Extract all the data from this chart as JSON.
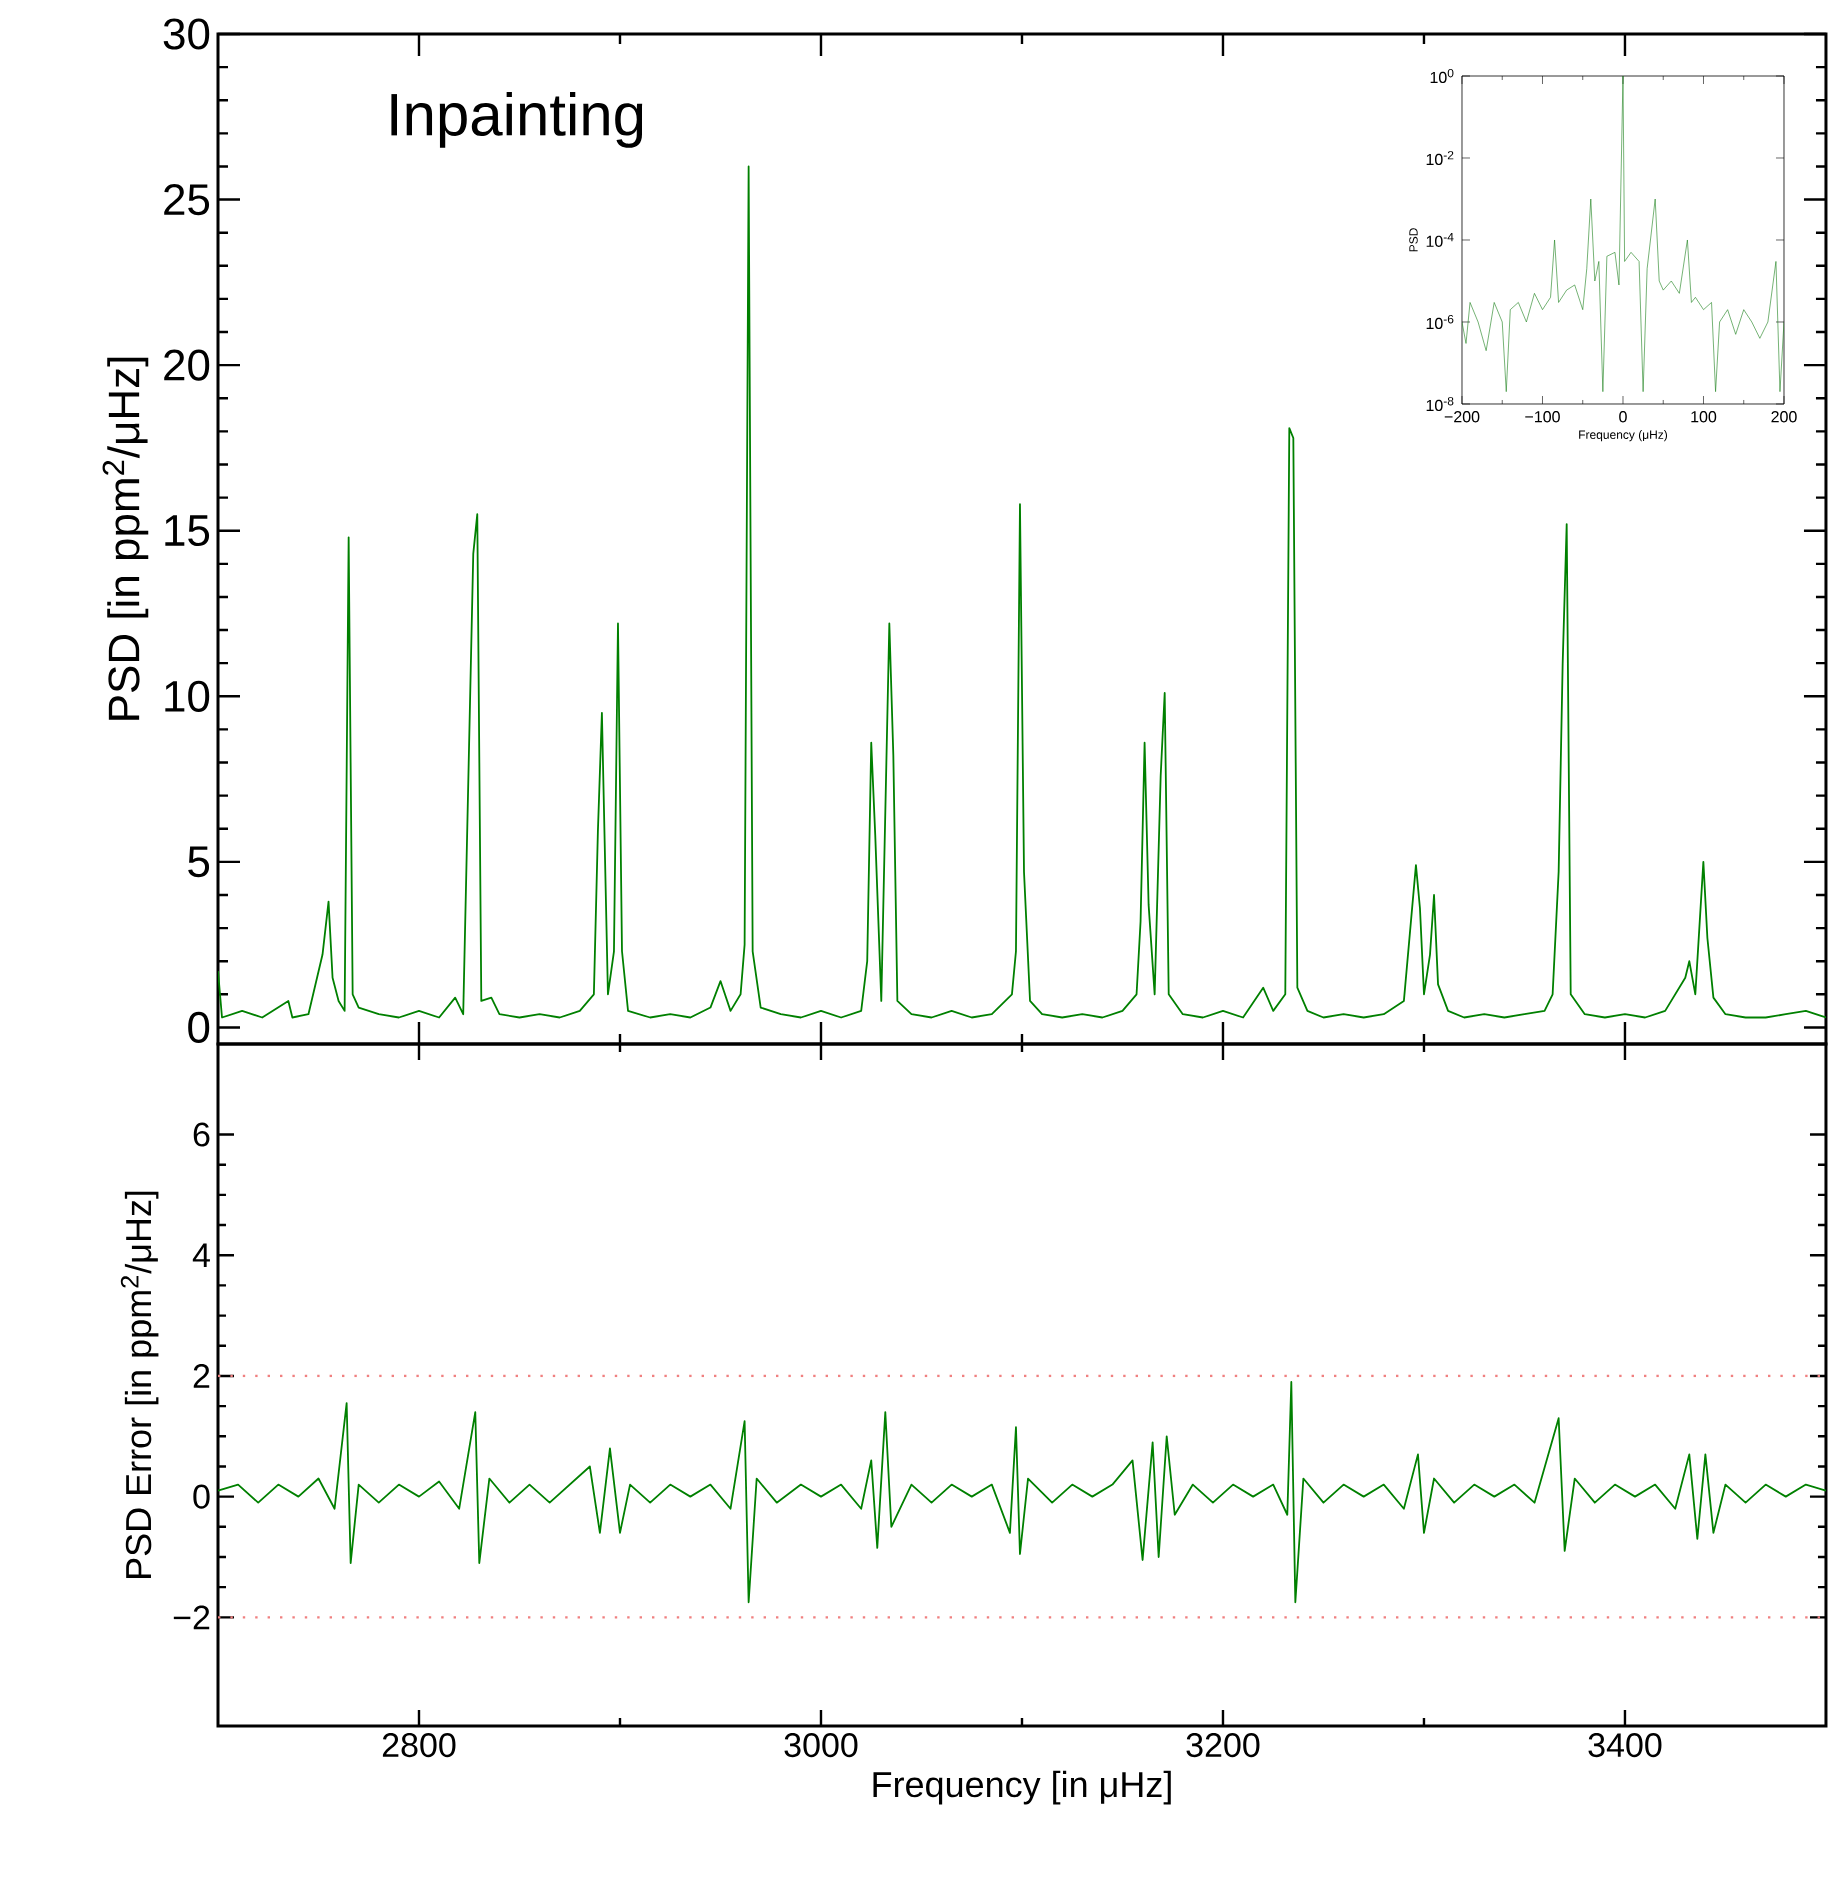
{
  "chart_data": [
    {
      "type": "line",
      "ylabel": "PSD [in ppm$^{2}$/μHz]",
      "annotations": [
        "Inpainting"
      ],
      "tick_labels": "y",
      "xlim": [
        2700,
        3500
      ],
      "ylim": [
        -0.5,
        30
      ],
      "xticks": [
        2800,
        3000,
        3200,
        3400
      ],
      "yticks": [
        0,
        5,
        10,
        15,
        20,
        25,
        30
      ],
      "series": [
        {
          "color": "#008000",
          "x": [
            2700,
            2702,
            2712,
            2722,
            2735,
            2737,
            2745,
            2752,
            2755,
            2757,
            2760,
            2763,
            2765,
            2767,
            2770,
            2780,
            2790,
            2800,
            2810,
            2818,
            2822,
            2827,
            2829,
            2831,
            2836,
            2840,
            2850,
            2860,
            2870,
            2880,
            2887,
            2889,
            2891,
            2894,
            2897,
            2899,
            2901,
            2904,
            2915,
            2925,
            2935,
            2945,
            2950,
            2955,
            2960,
            2962,
            2964,
            2966,
            2970,
            2980,
            2990,
            3000,
            3010,
            3020,
            3023,
            3025,
            3027,
            3030,
            3034,
            3036,
            3038,
            3045,
            3055,
            3065,
            3075,
            3085,
            3095,
            3097,
            3099,
            3101,
            3104,
            3110,
            3120,
            3130,
            3140,
            3150,
            3157,
            3159,
            3161,
            3163,
            3166,
            3169,
            3171,
            3173,
            3180,
            3190,
            3200,
            3210,
            3220,
            3225,
            3231,
            3233,
            3235,
            3237,
            3242,
            3250,
            3260,
            3270,
            3280,
            3290,
            3296,
            3298,
            3300,
            3303,
            3305,
            3307,
            3312,
            3320,
            3330,
            3340,
            3350,
            3360,
            3364,
            3367,
            3369,
            3371,
            3373,
            3380,
            3390,
            3400,
            3410,
            3420,
            3430,
            3432,
            3435,
            3439,
            3441,
            3444,
            3450,
            3460,
            3470,
            3480,
            3490,
            3500
          ],
          "values": [
            1.7,
            0.3,
            0.5,
            0.3,
            0.8,
            0.3,
            0.4,
            2.2,
            3.8,
            1.5,
            0.8,
            0.5,
            14.8,
            1.0,
            0.6,
            0.4,
            0.3,
            0.5,
            0.3,
            0.9,
            0.4,
            14.3,
            15.5,
            0.8,
            0.9,
            0.4,
            0.3,
            0.4,
            0.3,
            0.5,
            1.0,
            5.9,
            9.5,
            1.0,
            2.3,
            12.2,
            2.3,
            0.5,
            0.3,
            0.4,
            0.3,
            0.6,
            1.4,
            0.5,
            1.0,
            2.5,
            26.0,
            2.3,
            0.6,
            0.4,
            0.3,
            0.5,
            0.3,
            0.5,
            2.0,
            8.6,
            5.8,
            0.8,
            12.2,
            8.2,
            0.8,
            0.4,
            0.3,
            0.5,
            0.3,
            0.4,
            1.0,
            2.3,
            15.8,
            4.7,
            0.8,
            0.4,
            0.3,
            0.4,
            0.3,
            0.5,
            1.0,
            3.2,
            8.6,
            3.7,
            1.0,
            7.6,
            10.1,
            1.0,
            0.4,
            0.3,
            0.5,
            0.3,
            1.2,
            0.5,
            1.0,
            18.1,
            17.8,
            1.2,
            0.5,
            0.3,
            0.4,
            0.3,
            0.4,
            0.8,
            4.9,
            3.6,
            1.0,
            2.2,
            4.0,
            1.3,
            0.5,
            0.3,
            0.4,
            0.3,
            0.4,
            0.5,
            1.0,
            4.7,
            11.0,
            15.2,
            1.0,
            0.4,
            0.3,
            0.4,
            0.3,
            0.5,
            1.5,
            2.0,
            1.0,
            5.0,
            2.7,
            0.9,
            0.4,
            0.3,
            0.3,
            0.4,
            0.5,
            0.3
          ]
        }
      ]
    },
    {
      "type": "line",
      "xlabel": "Frequency [in μHz]",
      "ylabel": "PSD Error [in ppm$^{2}$/μHz]",
      "xlim": [
        2700,
        3500
      ],
      "ylim": [
        -3.8,
        7.5
      ],
      "xticks": [
        2800,
        3000,
        3200,
        3400
      ],
      "yticks": [
        {
          "value": -2,
          "label": "−2"
        },
        0,
        2,
        4,
        6
      ],
      "ref_lines": [
        {
          "axis": "y",
          "value": 2,
          "color": "#f08080",
          "line_style": "dotted"
        },
        {
          "axis": "y",
          "value": -2,
          "color": "#f08080",
          "line_style": "dotted"
        }
      ],
      "series": [
        {
          "color": "#008000",
          "x": [
            2700,
            2710,
            2720,
            2730,
            2740,
            2750,
            2758,
            2764,
            2766,
            2770,
            2780,
            2790,
            2800,
            2810,
            2820,
            2828,
            2830,
            2835,
            2845,
            2855,
            2865,
            2875,
            2885,
            2890,
            2895,
            2900,
            2905,
            2915,
            2925,
            2935,
            2945,
            2955,
            2962,
            2964,
            2968,
            2978,
            2990,
            3000,
            3010,
            3020,
            3025,
            3028,
            3032,
            3035,
            3045,
            3055,
            3065,
            3075,
            3085,
            3094,
            3097,
            3099,
            3103,
            3115,
            3125,
            3135,
            3145,
            3155,
            3160,
            3165,
            3168,
            3172,
            3176,
            3185,
            3195,
            3205,
            3215,
            3225,
            3232,
            3234,
            3236,
            3240,
            3250,
            3260,
            3270,
            3280,
            3290,
            3297,
            3300,
            3305,
            3315,
            3325,
            3335,
            3345,
            3355,
            3367,
            3370,
            3375,
            3385,
            3395,
            3405,
            3415,
            3425,
            3432,
            3436,
            3440,
            3444,
            3450,
            3460,
            3470,
            3480,
            3490,
            3500
          ],
          "values": [
            0.1,
            0.2,
            -0.1,
            0.2,
            0,
            0.3,
            -0.2,
            1.55,
            -1.1,
            0.2,
            -0.1,
            0.2,
            0,
            0.25,
            -0.2,
            1.4,
            -1.1,
            0.3,
            -0.1,
            0.2,
            -0.1,
            0.2,
            0.5,
            -0.6,
            0.8,
            -0.6,
            0.2,
            -0.1,
            0.2,
            0,
            0.2,
            -0.2,
            1.25,
            -1.75,
            0.3,
            -0.1,
            0.2,
            0,
            0.2,
            -0.2,
            0.6,
            -0.85,
            1.4,
            -0.5,
            0.2,
            -0.1,
            0.2,
            0,
            0.2,
            -0.6,
            1.15,
            -0.95,
            0.3,
            -0.1,
            0.2,
            0,
            0.2,
            0.6,
            -1.05,
            0.9,
            -1.0,
            1.0,
            -0.3,
            0.2,
            -0.1,
            0.2,
            0,
            0.2,
            -0.3,
            1.9,
            -1.75,
            0.3,
            -0.1,
            0.2,
            0,
            0.2,
            -0.2,
            0.7,
            -0.6,
            0.3,
            -0.1,
            0.2,
            0,
            0.2,
            -0.1,
            1.3,
            -0.9,
            0.3,
            -0.1,
            0.2,
            0,
            0.2,
            -0.2,
            0.7,
            -0.7,
            0.7,
            -0.6,
            0.2,
            -0.1,
            0.2,
            0,
            0.2,
            0.1
          ]
        }
      ]
    },
    {
      "type": "line",
      "xlabel": "Frequency (μHz)",
      "ylabel": "PSD",
      "log": "y",
      "xlim": [
        -200,
        200
      ],
      "ylim": [
        1e-08,
        1
      ],
      "xticks": [
        {
          "value": -200,
          "label": "−200"
        },
        {
          "value": -100,
          "label": "−100"
        },
        0,
        100,
        200
      ],
      "yticks": [
        {
          "value": 1e-08,
          "label": "10$^{-8}$"
        },
        {
          "value": 1e-06,
          "label": "10$^{-6}$"
        },
        {
          "value": 0.0001,
          "label": "10$^{-4}$"
        },
        {
          "value": 0.01,
          "label": "10$^{-2}$"
        },
        {
          "value": 1,
          "label": "10$^{0}$"
        }
      ],
      "series": [
        {
          "color": "#1a801a",
          "x": [
            -200,
            -195,
            -190,
            -180,
            -170,
            -160,
            -150,
            -145,
            -140,
            -130,
            -120,
            -110,
            -100,
            -90,
            -85,
            -80,
            -70,
            -60,
            -50,
            -45,
            -40,
            -35,
            -30,
            -25,
            -20,
            -10,
            -5,
            0,
            2,
            10,
            20,
            25,
            30,
            40,
            45,
            50,
            60,
            70,
            80,
            85,
            90,
            100,
            110,
            115,
            120,
            130,
            140,
            150,
            160,
            170,
            180,
            190,
            195,
            200
          ],
          "values": [
            1e-06,
            3e-07,
            3e-06,
            1e-06,
            2e-07,
            3e-06,
            1e-06,
            2e-08,
            2e-06,
            3e-06,
            1e-06,
            5e-06,
            2e-06,
            4e-06,
            0.0001,
            3e-06,
            6e-06,
            8e-06,
            2e-06,
            2e-05,
            0.001,
            1e-05,
            3e-05,
            2e-08,
            4e-05,
            5e-05,
            8e-06,
            1,
            3e-05,
            5e-05,
            3e-05,
            2e-08,
            2e-05,
            0.001,
            1e-05,
            6e-06,
            1e-05,
            5e-06,
            0.0001,
            3e-06,
            4e-06,
            2e-06,
            3e-06,
            2e-08,
            1e-06,
            2e-06,
            5e-07,
            2e-06,
            1e-06,
            4e-07,
            1e-06,
            3e-05,
            2e-08,
            1e-06
          ]
        }
      ]
    }
  ]
}
